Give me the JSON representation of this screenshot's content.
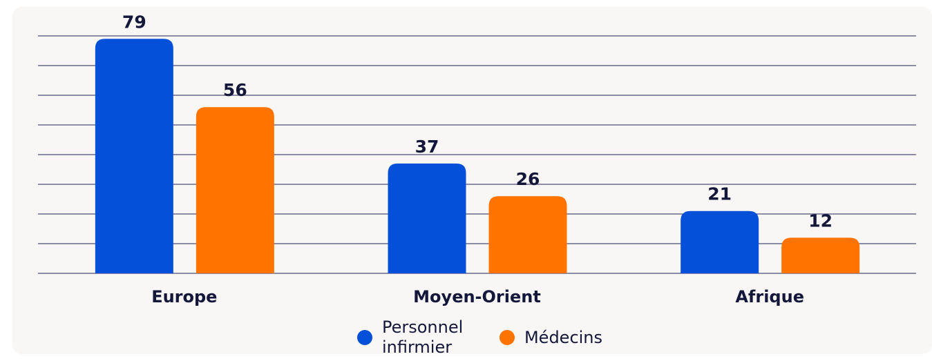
{
  "chart_data": {
    "type": "bar",
    "categories": [
      "Europe",
      "Moyen-Orient",
      "Afrique"
    ],
    "series": [
      {
        "name": "Personnel infirmier",
        "color": "#0550d8",
        "values": [
          79,
          37,
          21
        ]
      },
      {
        "name": "Médecins",
        "color": "#ff7300",
        "values": [
          56,
          26,
          12
        ]
      }
    ],
    "ylim": [
      0,
      80
    ],
    "yticks": [
      0,
      10,
      20,
      30,
      40,
      50,
      60,
      70,
      80
    ],
    "grid": true
  }
}
